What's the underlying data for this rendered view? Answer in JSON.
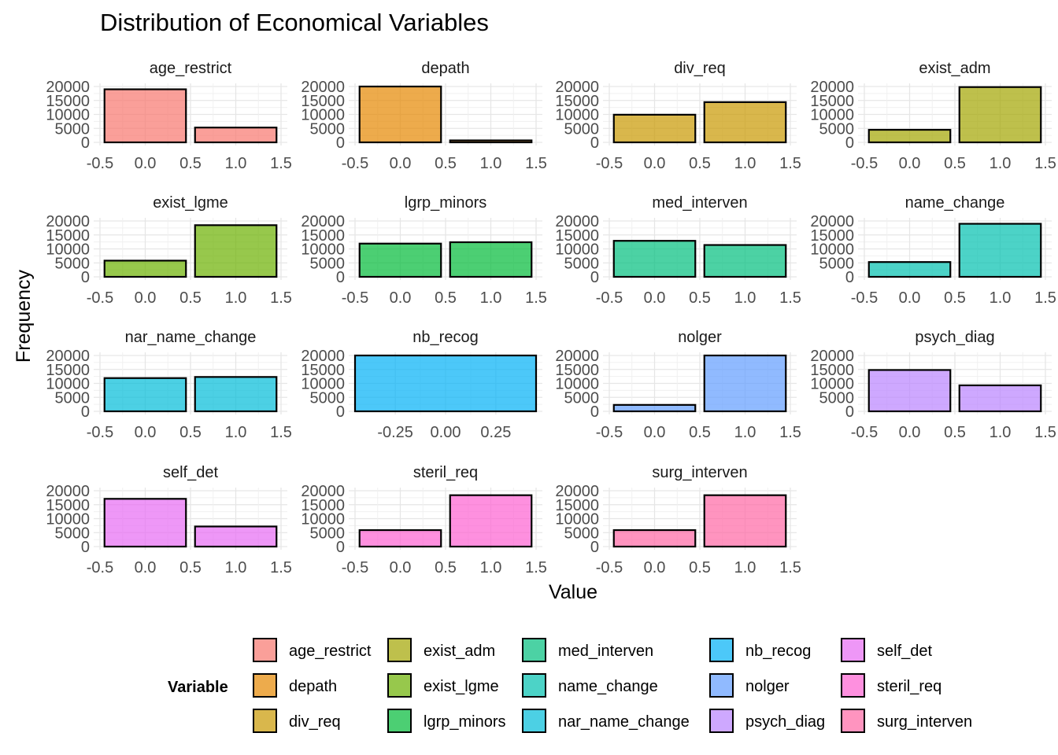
{
  "chart_data": {
    "type": "bar",
    "title": "Distribution of Economical Variables",
    "xlabel": "Value",
    "ylabel": "Frequency",
    "ylim": [
      0,
      20000
    ],
    "y_ticks": [
      0,
      5000,
      10000,
      15000,
      20000
    ],
    "grid": true,
    "legend": {
      "title": "Variable",
      "position": "bottom",
      "entries": [
        "age_restrict",
        "depath",
        "div_req",
        "exist_adm",
        "exist_lgme",
        "lgrp_minors",
        "med_interven",
        "name_change",
        "nar_name_change",
        "nb_recog",
        "nolger",
        "psych_diag",
        "self_det",
        "steril_req",
        "surg_interven"
      ]
    },
    "panels": [
      {
        "name": "age_restrict",
        "color": "#F8766D",
        "xlim": [
          -0.5,
          1.5
        ],
        "x_ticks": [
          "-0.5",
          "0.0",
          "0.5",
          "1.0",
          "1.5"
        ],
        "bars": [
          {
            "x": 0,
            "value": 19000
          },
          {
            "x": 1,
            "value": 5300
          }
        ]
      },
      {
        "name": "depath",
        "color": "#E58700",
        "xlim": [
          -0.5,
          1.5
        ],
        "x_ticks": [
          "-0.5",
          "0.0",
          "0.5",
          "1.0",
          "1.5"
        ],
        "bars": [
          {
            "x": 0,
            "value": 20000
          },
          {
            "x": 1,
            "value": 700
          }
        ]
      },
      {
        "name": "div_req",
        "color": "#C99800",
        "xlim": [
          -0.5,
          1.5
        ],
        "x_ticks": [
          "-0.5",
          "0.0",
          "0.5",
          "1.0",
          "1.5"
        ],
        "bars": [
          {
            "x": 0,
            "value": 9900
          },
          {
            "x": 1,
            "value": 14400
          }
        ]
      },
      {
        "name": "exist_adm",
        "color": "#A3A500",
        "xlim": [
          -0.5,
          1.5
        ],
        "x_ticks": [
          "-0.5",
          "0.0",
          "0.5",
          "1.0",
          "1.5"
        ],
        "bars": [
          {
            "x": 0,
            "value": 4500
          },
          {
            "x": 1,
            "value": 19800
          }
        ]
      },
      {
        "name": "exist_lgme",
        "color": "#6BB100",
        "xlim": [
          -0.5,
          1.5
        ],
        "x_ticks": [
          "-0.5",
          "0.0",
          "0.5",
          "1.0",
          "1.5"
        ],
        "bars": [
          {
            "x": 0,
            "value": 5800
          },
          {
            "x": 1,
            "value": 18500
          }
        ]
      },
      {
        "name": "lgrp_minors",
        "color": "#00BA38",
        "xlim": [
          -0.5,
          1.5
        ],
        "x_ticks": [
          "-0.5",
          "0.0",
          "0.5",
          "1.0",
          "1.5"
        ],
        "bars": [
          {
            "x": 0,
            "value": 11900
          },
          {
            "x": 1,
            "value": 12400
          }
        ]
      },
      {
        "name": "med_interven",
        "color": "#00BF7D",
        "xlim": [
          -0.5,
          1.5
        ],
        "x_ticks": [
          "-0.5",
          "0.0",
          "0.5",
          "1.0",
          "1.5"
        ],
        "bars": [
          {
            "x": 0,
            "value": 12900
          },
          {
            "x": 1,
            "value": 11400
          }
        ]
      },
      {
        "name": "name_change",
        "color": "#00C0AF",
        "xlim": [
          -0.5,
          1.5
        ],
        "x_ticks": [
          "-0.5",
          "0.0",
          "0.5",
          "1.0",
          "1.5"
        ],
        "bars": [
          {
            "x": 0,
            "value": 5300
          },
          {
            "x": 1,
            "value": 19000
          }
        ]
      },
      {
        "name": "nar_name_change",
        "color": "#00BCD8",
        "xlim": [
          -0.5,
          1.5
        ],
        "x_ticks": [
          "-0.5",
          "0.0",
          "0.5",
          "1.0",
          "1.5"
        ],
        "bars": [
          {
            "x": 0,
            "value": 11900
          },
          {
            "x": 1,
            "value": 12300
          }
        ]
      },
      {
        "name": "nb_recog",
        "color": "#00B0F6",
        "xlim": [
          -0.45,
          0.45
        ],
        "x_ticks": [
          "-0.25",
          "0.00",
          "0.25"
        ],
        "x_tick_values": [
          -0.25,
          0,
          0.25
        ],
        "bars": [
          {
            "x": 0,
            "value": 20000
          }
        ]
      },
      {
        "name": "nolger",
        "color": "#619CFF",
        "xlim": [
          -0.5,
          1.5
        ],
        "x_ticks": [
          "-0.5",
          "0.0",
          "0.5",
          "1.0",
          "1.5"
        ],
        "bars": [
          {
            "x": 0,
            "value": 2300
          },
          {
            "x": 1,
            "value": 20000
          }
        ]
      },
      {
        "name": "psych_diag",
        "color": "#B983FF",
        "xlim": [
          -0.5,
          1.5
        ],
        "x_ticks": [
          "-0.5",
          "0.0",
          "0.5",
          "1.0",
          "1.5"
        ],
        "bars": [
          {
            "x": 0,
            "value": 14800
          },
          {
            "x": 1,
            "value": 9300
          }
        ]
      },
      {
        "name": "self_det",
        "color": "#E76BF3",
        "xlim": [
          -0.5,
          1.5
        ],
        "x_ticks": [
          "-0.5",
          "0.0",
          "0.5",
          "1.0",
          "1.5"
        ],
        "bars": [
          {
            "x": 0,
            "value": 17100
          },
          {
            "x": 1,
            "value": 7200
          }
        ]
      },
      {
        "name": "steril_req",
        "color": "#FD61D1",
        "xlim": [
          -0.5,
          1.5
        ],
        "x_ticks": [
          "-0.5",
          "0.0",
          "0.5",
          "1.0",
          "1.5"
        ],
        "bars": [
          {
            "x": 0,
            "value": 5900
          },
          {
            "x": 1,
            "value": 18400
          }
        ]
      },
      {
        "name": "surg_interven",
        "color": "#FF67A4",
        "xlim": [
          -0.5,
          1.5
        ],
        "x_ticks": [
          "-0.5",
          "0.0",
          "0.5",
          "1.0",
          "1.5"
        ],
        "bars": [
          {
            "x": 0,
            "value": 5900
          },
          {
            "x": 1,
            "value": 18400
          }
        ]
      }
    ]
  }
}
